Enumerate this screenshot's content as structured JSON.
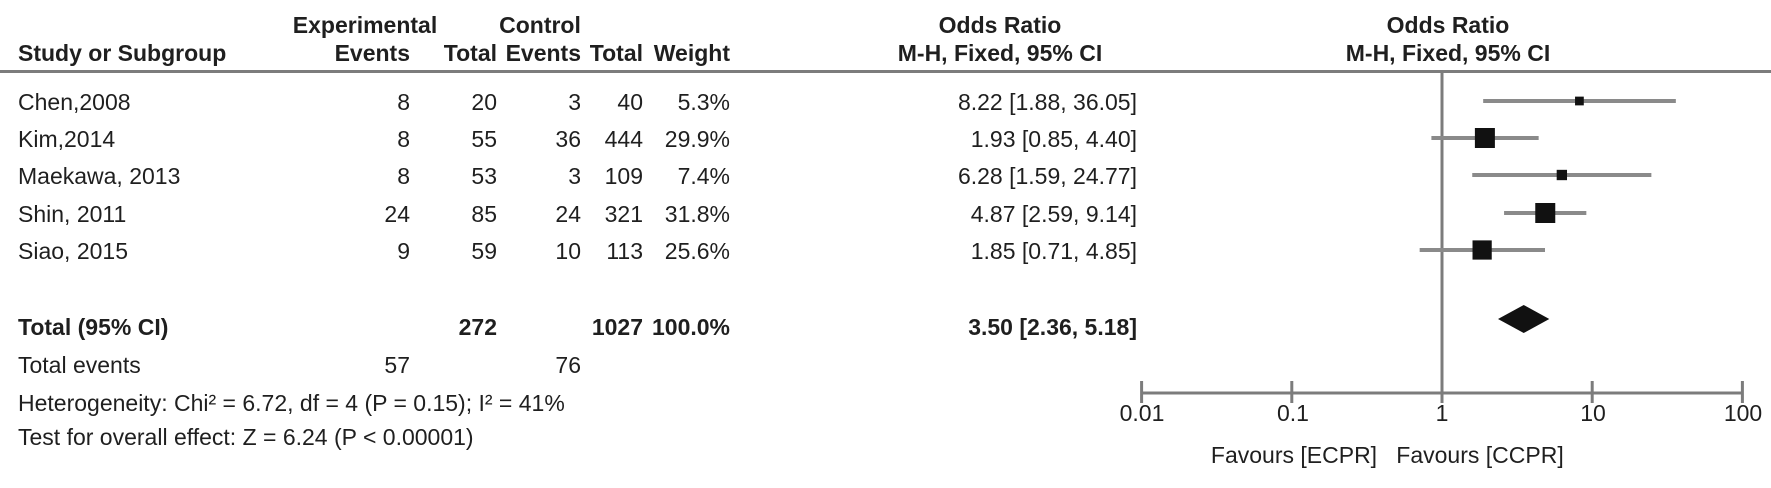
{
  "colors": {
    "line_gray": "#7c7c7c",
    "ci_gray": "#8a8a8a",
    "marker_black": "#111111",
    "text": "#1f1f1f",
    "background": "#ffffff"
  },
  "table": {
    "group_headers": {
      "experimental": "Experimental",
      "control": "Control",
      "or_stat": "Odds Ratio",
      "or_plot": "Odds Ratio"
    },
    "col_headers": {
      "study": "Study or Subgroup",
      "events_exp": "Events",
      "total_exp": "Total",
      "events_ctl": "Events",
      "total_ctl": "Total",
      "weight": "Weight",
      "or_ci": "M-H, Fixed, 95% CI",
      "or_ci_plot": "M-H, Fixed, 95% CI"
    },
    "rows": [
      {
        "study": "Chen,2008",
        "events_exp": "8",
        "total_exp": "20",
        "events_ctl": "3",
        "total_ctl": "40",
        "weight": "5.3%",
        "or_text": "8.22 [1.88, 36.05]"
      },
      {
        "study": "Kim,2014",
        "events_exp": "8",
        "total_exp": "55",
        "events_ctl": "36",
        "total_ctl": "444",
        "weight": "29.9%",
        "or_text": "1.93 [0.85, 4.40]"
      },
      {
        "study": "Maekawa, 2013",
        "events_exp": "8",
        "total_exp": "53",
        "events_ctl": "3",
        "total_ctl": "109",
        "weight": "7.4%",
        "or_text": "6.28 [1.59, 24.77]"
      },
      {
        "study": "Shin, 2011",
        "events_exp": "24",
        "total_exp": "85",
        "events_ctl": "24",
        "total_ctl": "321",
        "weight": "31.8%",
        "or_text": "4.87 [2.59, 9.14]"
      },
      {
        "study": "Siao, 2015",
        "events_exp": "9",
        "total_exp": "59",
        "events_ctl": "10",
        "total_ctl": "113",
        "weight": "25.6%",
        "or_text": "1.85 [0.71, 4.85]"
      }
    ],
    "total_row": {
      "label": "Total (95% CI)",
      "total_exp": "272",
      "total_ctl": "1027",
      "weight": "100.0%",
      "or_text": "3.50 [2.36, 5.18]"
    },
    "total_events": {
      "label": "Total events",
      "events_exp": "57",
      "events_ctl": "76"
    },
    "heterogeneity": "Heterogeneity: Chi² = 6.72, df = 4 (P = 0.15); I² = 41%",
    "overall_effect": "Test for overall effect: Z = 6.24 (P < 0.00001)"
  },
  "chart_data": {
    "type": "scatter",
    "subtype": "forest-plot",
    "effect_measure": "Odds Ratio, M-H, Fixed, 95% CI",
    "x_scale": "log10",
    "xlim": [
      0.01,
      100
    ],
    "x_ticks": [
      "0.01",
      "0.1",
      "1",
      "10",
      "100"
    ],
    "x_tick_values": [
      0.01,
      0.1,
      1,
      10,
      100
    ],
    "null_line": 1,
    "xlabel_left": "Favours [ECPR]",
    "xlabel_right": "Favours [CCPR]",
    "studies": [
      {
        "name": "Chen,2008",
        "or": 8.22,
        "ci_low": 1.88,
        "ci_high": 36.05,
        "weight_pct": 5.3
      },
      {
        "name": "Kim,2014",
        "or": 1.93,
        "ci_low": 0.85,
        "ci_high": 4.4,
        "weight_pct": 29.9
      },
      {
        "name": "Maekawa, 2013",
        "or": 6.28,
        "ci_low": 1.59,
        "ci_high": 24.77,
        "weight_pct": 7.4
      },
      {
        "name": "Shin, 2011",
        "or": 4.87,
        "ci_low": 2.59,
        "ci_high": 9.14,
        "weight_pct": 31.8
      },
      {
        "name": "Siao, 2015",
        "or": 1.85,
        "ci_low": 0.71,
        "ci_high": 4.85,
        "weight_pct": 25.6
      }
    ],
    "pooled": {
      "name": "Total (95% CI)",
      "or": 3.5,
      "ci_low": 2.36,
      "ci_high": 5.18,
      "weight_pct": 100.0
    }
  }
}
